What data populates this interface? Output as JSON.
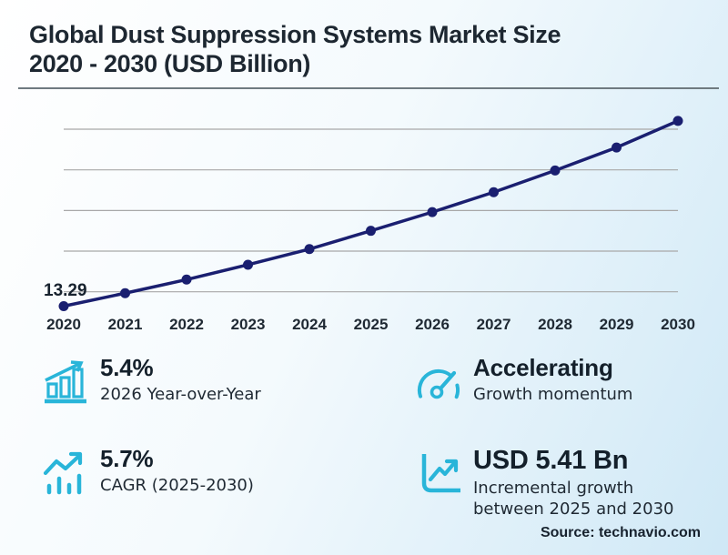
{
  "header": {
    "title_lines": [
      "Global Dust Suppression Systems Market Size",
      "2020 - 2030 (USD Billion)"
    ]
  },
  "colors": {
    "accent_cyan": "#29b5d9",
    "line_navy": "#1a1f70",
    "grid_gray": "#a8a8a8",
    "text_dark": "#1f2933"
  },
  "chart_data": {
    "type": "line",
    "title": "Global Dust Suppression Systems Market Size 2020 - 2030 (USD Billion)",
    "x": [
      2020,
      2021,
      2022,
      2023,
      2024,
      2025,
      2026,
      2027,
      2028,
      2029,
      2030
    ],
    "values": [
      13.29,
      13.93,
      14.6,
      15.33,
      16.1,
      17.0,
      17.92,
      18.9,
      19.97,
      21.1,
      22.41
    ],
    "first_point_label": "13.29",
    "xlabel": "",
    "ylabel": "",
    "ylim": [
      13,
      23
    ],
    "gridline_values": [
      14,
      16,
      18,
      20,
      22
    ],
    "grid": true,
    "legend": false,
    "marker": "circle"
  },
  "stats": [
    {
      "icon": "bar-chart-rising-icon",
      "value": "5.4%",
      "label": "2026 Year-over-Year"
    },
    {
      "icon": "speedometer-icon",
      "value": "Accelerating",
      "label": "Growth momentum"
    },
    {
      "icon": "trend-arrow-bars-icon",
      "value": "5.7%",
      "label": "CAGR (2025-2030)"
    },
    {
      "icon": "chart-box-arrow-icon",
      "value": "USD 5.41 Bn",
      "label": "Incremental growth between 2025 and 2030"
    }
  ],
  "footer": {
    "source": "Source: technavio.com"
  }
}
